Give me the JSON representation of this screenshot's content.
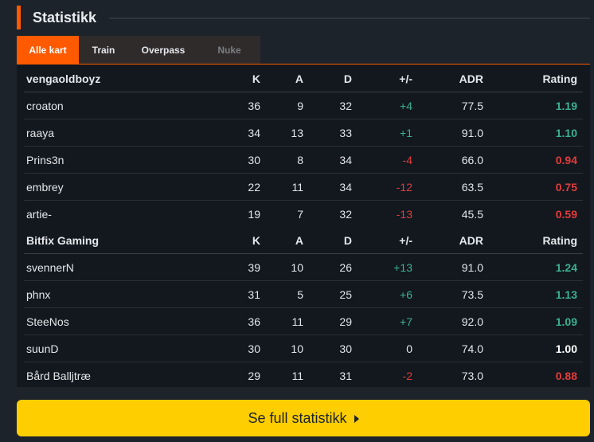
{
  "section_title": "Statistikk",
  "tabs": [
    {
      "label": "Alle kart",
      "state": "active"
    },
    {
      "label": "Train",
      "state": "normal"
    },
    {
      "label": "Overpass",
      "state": "normal"
    },
    {
      "label": "Nuke",
      "state": "disabled"
    }
  ],
  "teams": [
    {
      "name": "vengaoldboyz",
      "headers": {
        "k": "K",
        "a": "A",
        "d": "D",
        "pm": "+/-",
        "adr": "ADR",
        "rating": "Rating"
      },
      "players": [
        {
          "name": "croaton",
          "k": "36",
          "a": "9",
          "d": "32",
          "pm": "+4",
          "adr": "77.5",
          "rating": "1.19"
        },
        {
          "name": "raaya",
          "k": "34",
          "a": "13",
          "d": "33",
          "pm": "+1",
          "adr": "91.0",
          "rating": "1.10"
        },
        {
          "name": "Prins3n",
          "k": "30",
          "a": "8",
          "d": "34",
          "pm": "-4",
          "adr": "66.0",
          "rating": "0.94"
        },
        {
          "name": "embrey",
          "k": "22",
          "a": "11",
          "d": "34",
          "pm": "-12",
          "adr": "63.5",
          "rating": "0.75"
        },
        {
          "name": "artie-",
          "k": "19",
          "a": "7",
          "d": "32",
          "pm": "-13",
          "adr": "45.5",
          "rating": "0.59"
        }
      ]
    },
    {
      "name": "Bitfix Gaming",
      "headers": {
        "k": "K",
        "a": "A",
        "d": "D",
        "pm": "+/-",
        "adr": "ADR",
        "rating": "Rating"
      },
      "players": [
        {
          "name": "svennerN",
          "k": "39",
          "a": "10",
          "d": "26",
          "pm": "+13",
          "adr": "91.0",
          "rating": "1.24"
        },
        {
          "name": "phnx",
          "k": "31",
          "a": "5",
          "d": "25",
          "pm": "+6",
          "adr": "73.5",
          "rating": "1.13"
        },
        {
          "name": "SteeNos",
          "k": "36",
          "a": "11",
          "d": "29",
          "pm": "+7",
          "adr": "92.0",
          "rating": "1.09"
        },
        {
          "name": "suunD",
          "k": "30",
          "a": "10",
          "d": "30",
          "pm": "0",
          "adr": "74.0",
          "rating": "1.00"
        },
        {
          "name": "Bård Balljtræ",
          "k": "29",
          "a": "11",
          "d": "31",
          "pm": "-2",
          "adr": "73.0",
          "rating": "0.88"
        }
      ]
    }
  ],
  "cta": {
    "label": "Se full statistikk",
    "icon": "caret-right-icon"
  },
  "colors": {
    "accent": "#ff5a00",
    "cta": "#ffce00",
    "positive": "#3cb08f",
    "negative": "#e23c3c"
  }
}
